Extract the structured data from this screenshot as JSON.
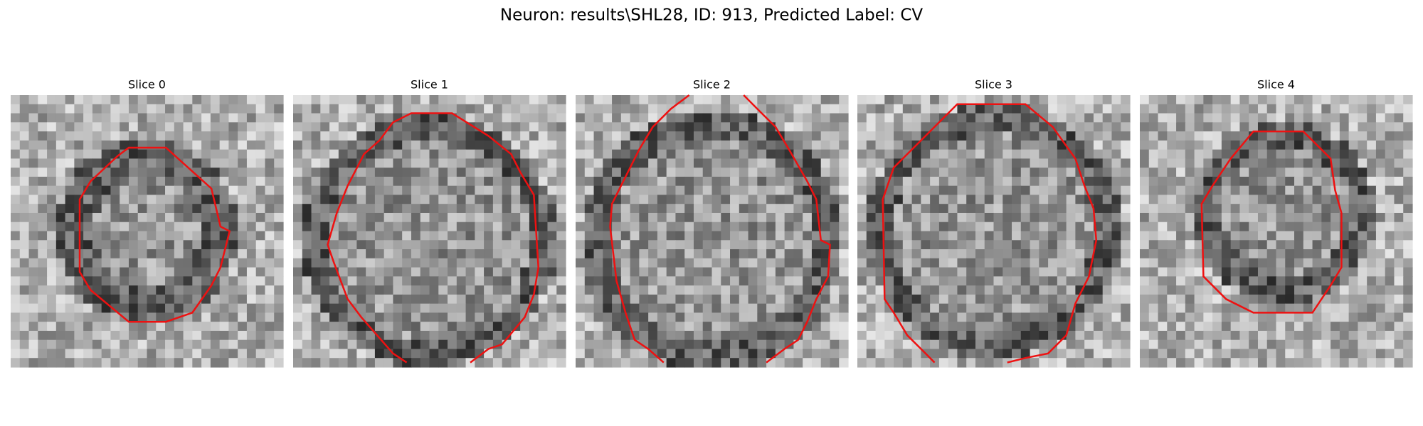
{
  "title": "Neuron: results\\SHL28, ID: 913, Predicted Label: CV",
  "panels": [
    {
      "title": "Slice 0"
    },
    {
      "title": "Slice 1"
    },
    {
      "title": "Slice 2"
    },
    {
      "title": "Slice 3"
    },
    {
      "title": "Slice 4"
    }
  ]
}
